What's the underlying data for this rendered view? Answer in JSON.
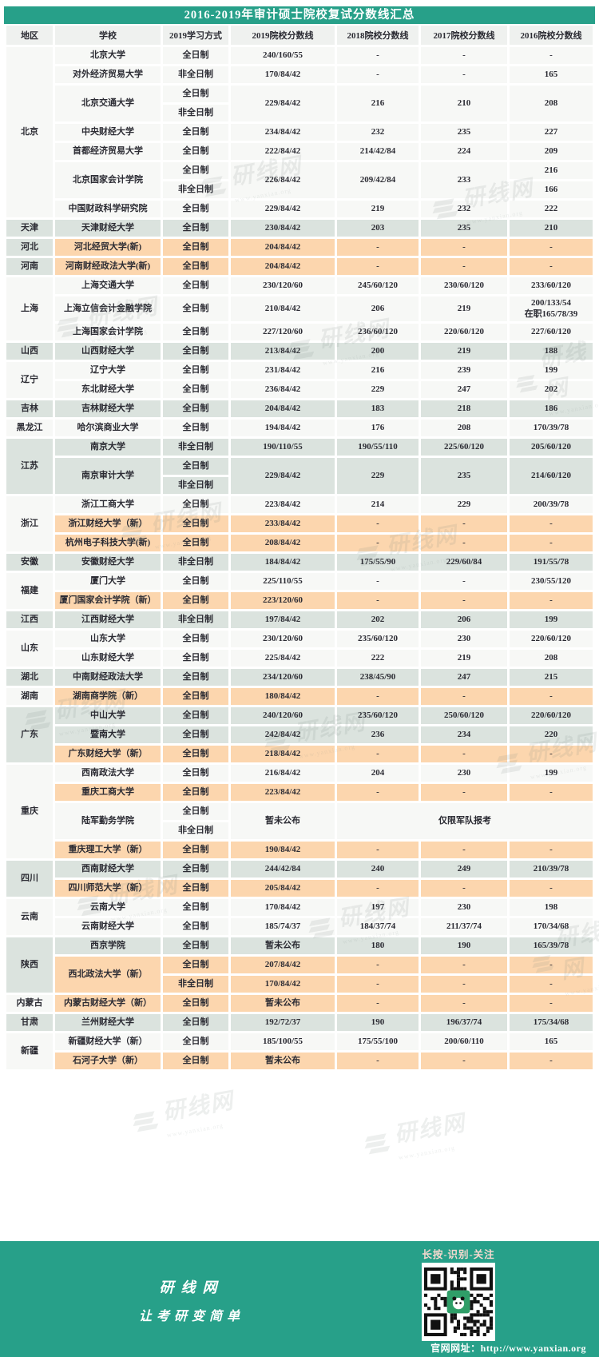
{
  "title": "2016-2019年审计硕士院校复试分数线汇总",
  "colors": {
    "teal": "#27a089",
    "orange": "#fcd6ae",
    "sage": "#dbe3de",
    "row_white": "#f7f8f6",
    "header_gray": "#eff1ef"
  },
  "watermark": {
    "text": "研线网",
    "url": "www.yanxian.org"
  },
  "table": {
    "headers": [
      "地区",
      "学校",
      "2019学习方式",
      "2019院校分数线",
      "2018院校分数线",
      "2017院校分数线",
      "2016院校分数线"
    ],
    "regions": [
      {
        "name": "北京",
        "label_bg": "white",
        "schools": [
          {
            "name": "北京大学",
            "bg": "white",
            "modes": [
              "全日制"
            ],
            "y2019": "240/160/55",
            "y2018": "-",
            "y2017": "-",
            "y2016": "-"
          },
          {
            "name": "对外经济贸易大学",
            "bg": "white",
            "modes": [
              "非全日制"
            ],
            "y2019": "170/84/42",
            "y2018": "-",
            "y2017": "-",
            "y2016": "165"
          },
          {
            "name": "北京交通大学",
            "bg": "white",
            "modes": [
              "全日制",
              "非全日制"
            ],
            "y2019": "229/84/42",
            "y2018": "216",
            "y2017": "210",
            "y2016": "208"
          },
          {
            "name": "中央财经大学",
            "bg": "white",
            "modes": [
              "全日制"
            ],
            "y2019": "234/84/42",
            "y2018": "232",
            "y2017": "235",
            "y2016": "227"
          },
          {
            "name": "首都经济贸易大学",
            "bg": "white",
            "modes": [
              "全日制"
            ],
            "y2019": "222/84/42",
            "y2018": "214/42/84",
            "y2017": "224",
            "y2016": "209"
          },
          {
            "name": "北京国家会计学院",
            "bg": "white",
            "modes": [
              "全日制",
              "非全日制"
            ],
            "y2019": "226/84/42",
            "y2018": "209/42/84",
            "y2017": "233",
            "y2016": [
              "216",
              "166"
            ]
          },
          {
            "name": "中国财政科学研究院",
            "bg": "white",
            "modes": [
              "全日制"
            ],
            "y2019": "229/84/42",
            "y2018": "219",
            "y2017": "232",
            "y2016": "222"
          }
        ]
      },
      {
        "name": "天津",
        "label_bg": "sage",
        "schools": [
          {
            "name": "天津财经大学",
            "bg": "sage",
            "modes": [
              "全日制"
            ],
            "y2019": "230/84/42",
            "y2018": "203",
            "y2017": "235",
            "y2016": "210"
          }
        ]
      },
      {
        "name": "河北",
        "label_bg": "sage",
        "schools": [
          {
            "name": "河北经贸大学(新)",
            "bg": "orange",
            "modes": [
              "全日制"
            ],
            "y2019": "204/84/42",
            "y2018": "-",
            "y2017": "-",
            "y2016": "-"
          }
        ]
      },
      {
        "name": "河南",
        "label_bg": "sage",
        "schools": [
          {
            "name": "河南财经政法大学(新)",
            "bg": "orange",
            "modes": [
              "全日制"
            ],
            "y2019": "204/84/42",
            "y2018": "-",
            "y2017": "-",
            "y2016": "-"
          }
        ]
      },
      {
        "name": "上海",
        "label_bg": "white",
        "schools": [
          {
            "name": "上海交通大学",
            "bg": "white",
            "modes": [
              "全日制"
            ],
            "y2019": "230/120/60",
            "y2018": "245/60/120",
            "y2017": "230/60/120",
            "y2016": "233/60/120"
          },
          {
            "name": "上海立信会计金融学院",
            "bg": "white",
            "modes": [
              "全日制"
            ],
            "y2019": "210/84/42",
            "y2018": "206",
            "y2017": "219",
            "y2016": "200/133/54\n在职165/78/39"
          },
          {
            "name": "上海国家会计学院",
            "bg": "white",
            "modes": [
              "全日制"
            ],
            "y2019": "227/120/60",
            "y2018": "236/60/120",
            "y2017": "220/60/120",
            "y2016": "227/60/120"
          }
        ]
      },
      {
        "name": "山西",
        "label_bg": "sage",
        "schools": [
          {
            "name": "山西财经大学",
            "bg": "sage",
            "modes": [
              "全日制"
            ],
            "y2019": "213/84/42",
            "y2018": "200",
            "y2017": "219",
            "y2016": "188"
          }
        ]
      },
      {
        "name": "辽宁",
        "label_bg": "white",
        "schools": [
          {
            "name": "辽宁大学",
            "bg": "white",
            "modes": [
              "全日制"
            ],
            "y2019": "231/84/42",
            "y2018": "216",
            "y2017": "239",
            "y2016": "199"
          },
          {
            "name": "东北财经大学",
            "bg": "white",
            "modes": [
              "全日制"
            ],
            "y2019": "236/84/42",
            "y2018": "229",
            "y2017": "247",
            "y2016": "202"
          }
        ]
      },
      {
        "name": "吉林",
        "label_bg": "sage",
        "schools": [
          {
            "name": "吉林财经大学",
            "bg": "sage",
            "modes": [
              "全日制"
            ],
            "y2019": "204/84/42",
            "y2018": "183",
            "y2017": "218",
            "y2016": "186"
          }
        ]
      },
      {
        "name": "黑龙江",
        "label_bg": "white",
        "schools": [
          {
            "name": "哈尔滨商业大学",
            "bg": "white",
            "modes": [
              "全日制"
            ],
            "y2019": "194/84/42",
            "y2018": "176",
            "y2017": "208",
            "y2016": "170/39/78"
          }
        ]
      },
      {
        "name": "江苏",
        "label_bg": "sage",
        "schools": [
          {
            "name": "南京大学",
            "bg": "sage",
            "modes": [
              "非全日制"
            ],
            "y2019": "190/110/55",
            "y2018": "190/55/110",
            "y2017": "225/60/120",
            "y2016": "205/60/120"
          },
          {
            "name": "南京审计大学",
            "bg": "sage",
            "modes": [
              "全日制",
              "非全日制"
            ],
            "y2019": "229/84/42",
            "y2018": "229",
            "y2017": "235",
            "y2016": "214/60/120"
          }
        ]
      },
      {
        "name": "浙江",
        "label_bg": "white",
        "schools": [
          {
            "name": "浙江工商大学",
            "bg": "white",
            "modes": [
              "全日制"
            ],
            "y2019": "223/84/42",
            "y2018": "214",
            "y2017": "229",
            "y2016": "200/39/78"
          },
          {
            "name": "浙江财经大学（新）",
            "bg": "orange",
            "modes": [
              "全日制"
            ],
            "y2019": "233/84/42",
            "y2018": "-",
            "y2017": "-",
            "y2016": "-"
          },
          {
            "name": "杭州电子科技大学(新)",
            "bg": "orange",
            "modes": [
              "全日制"
            ],
            "y2019": "208/84/42",
            "y2018": "-",
            "y2017": "-",
            "y2016": "-"
          }
        ]
      },
      {
        "name": "安徽",
        "label_bg": "sage",
        "schools": [
          {
            "name": "安徽财经大学",
            "bg": "sage",
            "modes": [
              "非全日制"
            ],
            "y2019": "184/84/42",
            "y2018": "175/55/90",
            "y2017": "229/60/84",
            "y2016": "191/55/78"
          }
        ]
      },
      {
        "name": "福建",
        "label_bg": "white",
        "schools": [
          {
            "name": "厦门大学",
            "bg": "white",
            "modes": [
              "全日制"
            ],
            "y2019": "225/110/55",
            "y2018": "-",
            "y2017": "-",
            "y2016": "230/55/120"
          },
          {
            "name": "厦门国家会计学院（新）",
            "bg": "orange",
            "modes": [
              "全日制"
            ],
            "y2019": "223/120/60",
            "y2018": "-",
            "y2017": "-",
            "y2016": "-"
          }
        ]
      },
      {
        "name": "江西",
        "label_bg": "sage",
        "schools": [
          {
            "name": "江西财经大学",
            "bg": "sage",
            "modes": [
              "非全日制"
            ],
            "y2019": "197/84/42",
            "y2018": "202",
            "y2017": "206",
            "y2016": "199"
          }
        ]
      },
      {
        "name": "山东",
        "label_bg": "white",
        "schools": [
          {
            "name": "山东大学",
            "bg": "white",
            "modes": [
              "全日制"
            ],
            "y2019": "230/120/60",
            "y2018": "235/60/120",
            "y2017": "230",
            "y2016": "220/60/120"
          },
          {
            "name": "山东财经大学",
            "bg": "white",
            "modes": [
              "全日制"
            ],
            "y2019": "225/84/42",
            "y2018": "222",
            "y2017": "219",
            "y2016": "208"
          }
        ]
      },
      {
        "name": "湖北",
        "label_bg": "sage",
        "schools": [
          {
            "name": "中南财经政法大学",
            "bg": "sage",
            "modes": [
              "全日制"
            ],
            "y2019": "234/120/60",
            "y2018": "238/45/90",
            "y2017": "247",
            "y2016": "215"
          }
        ]
      },
      {
        "name": "湖南",
        "label_bg": "white",
        "schools": [
          {
            "name": "湖南商学院（新）",
            "bg": "orange",
            "modes": [
              "全日制"
            ],
            "y2019": "180/84/42",
            "y2018": "-",
            "y2017": "-",
            "y2016": "-"
          }
        ]
      },
      {
        "name": "广东",
        "label_bg": "sage",
        "schools": [
          {
            "name": "中山大学",
            "bg": "sage",
            "modes": [
              "全日制"
            ],
            "y2019": "240/120/60",
            "y2018": "235/60/120",
            "y2017": "250/60/120",
            "y2016": "220/60/120"
          },
          {
            "name": "暨南大学",
            "bg": "sage",
            "modes": [
              "全日制"
            ],
            "y2019": "242/84/42",
            "y2018": "236",
            "y2017": "234",
            "y2016": "220"
          },
          {
            "name": "广东财经大学（新）",
            "bg": "orange",
            "modes": [
              "全日制"
            ],
            "y2019": "218/84/42",
            "y2018": "-",
            "y2017": "-",
            "y2016": "-"
          }
        ]
      },
      {
        "name": "重庆",
        "label_bg": "white",
        "schools": [
          {
            "name": "西南政法大学",
            "bg": "white",
            "modes": [
              "全日制"
            ],
            "y2019": "216/84/42",
            "y2018": "204",
            "y2017": "230",
            "y2016": "199"
          },
          {
            "name": "重庆工商大学",
            "bg": "orange",
            "modes": [
              "全日制"
            ],
            "y2019": "223/84/42",
            "y2018": "-",
            "y2017": "-",
            "y2016": "-"
          },
          {
            "name": "陆军勤务学院",
            "bg": "white",
            "modes": [
              "全日制",
              "非全日制"
            ],
            "y2019": "暂未公布",
            "merged_note": "仅限军队报考"
          },
          {
            "name": "重庆理工大学（新）",
            "bg": "orange",
            "modes": [
              "全日制"
            ],
            "y2019": "190/84/42",
            "y2018": "-",
            "y2017": "-",
            "y2016": "-"
          }
        ]
      },
      {
        "name": "四川",
        "label_bg": "sage",
        "schools": [
          {
            "name": "西南财经大学",
            "bg": "sage",
            "modes": [
              "全日制"
            ],
            "y2019": "244/42/84",
            "y2018": "240",
            "y2017": "249",
            "y2016": "210/39/78"
          },
          {
            "name": "四川师范大学（新）",
            "bg": "orange",
            "modes": [
              "全日制"
            ],
            "y2019": "205/84/42",
            "y2018": "-",
            "y2017": "-",
            "y2016": "-"
          }
        ]
      },
      {
        "name": "云南",
        "label_bg": "white",
        "schools": [
          {
            "name": "云南大学",
            "bg": "white",
            "modes": [
              "全日制"
            ],
            "y2019": "170/84/42",
            "y2018": "197",
            "y2017": "230",
            "y2016": "198"
          },
          {
            "name": "云南财经大学",
            "bg": "white",
            "modes": [
              "全日制"
            ],
            "y2019": "185/74/37",
            "y2018": "184/37/74",
            "y2017": "211/37/74",
            "y2016": "170/34/68"
          }
        ]
      },
      {
        "name": "陕西",
        "label_bg": "sage",
        "schools": [
          {
            "name": "西京学院",
            "bg": "sage",
            "modes": [
              "全日制"
            ],
            "y2019": "暂未公布",
            "y2018": "180",
            "y2017": "190",
            "y2016": "165/39/78"
          },
          {
            "name": "西北政法大学（新）",
            "bg": "orange",
            "modes": [
              "全日制",
              "非全日制"
            ],
            "y2019": [
              "207/84/42",
              "170/84/42"
            ],
            "y2018": [
              "-",
              "-"
            ],
            "y2017": [
              "-",
              "-"
            ],
            "y2016": [
              "-",
              "-"
            ]
          }
        ]
      },
      {
        "name": "内蒙古",
        "label_bg": "white",
        "schools": [
          {
            "name": "内蒙古财经大学（新）",
            "bg": "orange",
            "modes": [
              "全日制"
            ],
            "y2019": "暂未公布",
            "y2018": "-",
            "y2017": "-",
            "y2016": "-"
          }
        ]
      },
      {
        "name": "甘肃",
        "label_bg": "sage",
        "schools": [
          {
            "name": "兰州财经大学",
            "bg": "sage",
            "modes": [
              "全日制"
            ],
            "y2019": "192/72/37",
            "y2018": "190",
            "y2017": "196/37/74",
            "y2016": "175/34/68"
          }
        ]
      },
      {
        "name": "新疆",
        "label_bg": "white",
        "schools": [
          {
            "name": "新疆财经大学（新）",
            "bg": "white",
            "modes": [
              "全日制"
            ],
            "y2019": "185/100/55",
            "y2018": "175/55/100",
            "y2017": "200/60/110",
            "y2016": "165"
          },
          {
            "name": "石河子大学（新）",
            "bg": "orange",
            "modes": [
              "全日制"
            ],
            "y2019": "暂未公布",
            "y2018": "-",
            "y2017": "-",
            "y2016": "-"
          }
        ]
      }
    ]
  },
  "footer": {
    "qr_label": "长按-识别-关注",
    "brand_line1": "研线网",
    "brand_line2": "让考研变简单",
    "site_url": "官网网址：http://www.yanxian.org"
  }
}
